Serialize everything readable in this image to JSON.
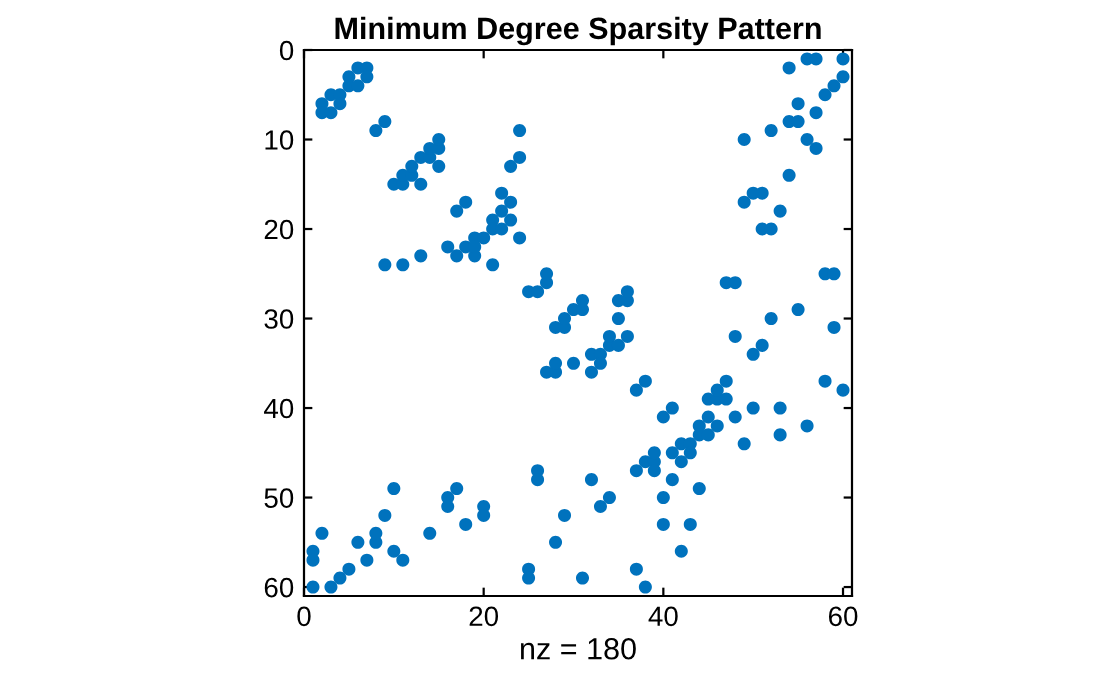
{
  "chart_data": {
    "type": "scatter",
    "title": "Minimum Degree Sparsity Pattern",
    "xlabel": "nz = 180",
    "series": [
      {
        "color": "#0072bd",
        "x": [
          2,
          2,
          3,
          3,
          4,
          4,
          5,
          5,
          6,
          6,
          7,
          7,
          8,
          9,
          10,
          11,
          11,
          12,
          12,
          13,
          13,
          14,
          14,
          15,
          15,
          15,
          24,
          24,
          23,
          22,
          23,
          22,
          21,
          21,
          22,
          23,
          24,
          17,
          18,
          19,
          20,
          9,
          11,
          13,
          16,
          17,
          18,
          19,
          21,
          19,
          25,
          26,
          27,
          27,
          28,
          29,
          29,
          30,
          31,
          31,
          27,
          28,
          28,
          30,
          32,
          32,
          33,
          33,
          34,
          34,
          35,
          35,
          35,
          36,
          36,
          36,
          37,
          38,
          40,
          41,
          42,
          43,
          44,
          44,
          45,
          45,
          45,
          46,
          46,
          46,
          47,
          47,
          48,
          49,
          50,
          50,
          51,
          52,
          48,
          47,
          48,
          55,
          58,
          59,
          59,
          58,
          60,
          53,
          53,
          56,
          54,
          56,
          57,
          60,
          60,
          59,
          58,
          55,
          54,
          55,
          57,
          56,
          57,
          49,
          52,
          54,
          50,
          51,
          49,
          53,
          51,
          52,
          1,
          1,
          1,
          2,
          3,
          4,
          5,
          6,
          7,
          8,
          8,
          9,
          10,
          10,
          11,
          14,
          16,
          16,
          17,
          18,
          20,
          20,
          25,
          25,
          26,
          26,
          28,
          29,
          31,
          32,
          33,
          34,
          37,
          38,
          39,
          39,
          39,
          41,
          42,
          43,
          41,
          40,
          44,
          40,
          43,
          42,
          37,
          38
        ],
        "values": [
          6,
          7,
          7,
          5,
          5,
          6,
          3,
          4,
          4,
          2,
          2,
          3,
          9,
          8,
          15,
          15,
          14,
          14,
          13,
          15,
          12,
          12,
          11,
          11,
          10,
          13,
          9,
          12,
          13,
          16,
          17,
          18,
          19,
          20,
          20,
          19,
          21,
          18,
          17,
          21,
          21,
          24,
          24,
          23,
          22,
          23,
          22,
          23,
          24,
          22,
          27,
          27,
          26,
          25,
          31,
          31,
          30,
          29,
          29,
          28,
          36,
          36,
          35,
          35,
          36,
          34,
          34,
          35,
          33,
          32,
          33,
          30,
          28,
          28,
          27,
          32,
          38,
          37,
          41,
          40,
          44,
          44,
          42,
          43,
          43,
          41,
          39,
          39,
          38,
          42,
          39,
          37,
          41,
          44,
          40,
          34,
          33,
          30,
          32,
          26,
          26,
          29,
          25,
          25,
          31,
          37,
          38,
          40,
          43,
          42,
          2,
          1,
          1,
          1,
          3,
          4,
          5,
          6,
          8,
          8,
          7,
          10,
          11,
          10,
          9,
          14,
          16,
          16,
          17,
          18,
          20,
          20,
          56,
          57,
          60,
          54,
          60,
          59,
          58,
          55,
          57,
          55,
          54,
          52,
          49,
          56,
          57,
          54,
          50,
          51,
          49,
          53,
          51,
          52,
          58,
          59,
          47,
          48,
          55,
          52,
          59,
          48,
          51,
          50,
          47,
          46,
          46,
          45,
          47,
          45,
          46,
          45,
          48,
          50,
          49,
          53,
          53,
          56,
          58,
          60
        ]
      }
    ],
    "xlim": [
      0,
      61
    ],
    "ylim": [
      61,
      0
    ],
    "xticks": [
      0,
      20,
      40,
      60
    ],
    "yticks": [
      0,
      10,
      20,
      30,
      40,
      50,
      60
    ],
    "marker": "circle",
    "grid": false,
    "legend": false
  }
}
